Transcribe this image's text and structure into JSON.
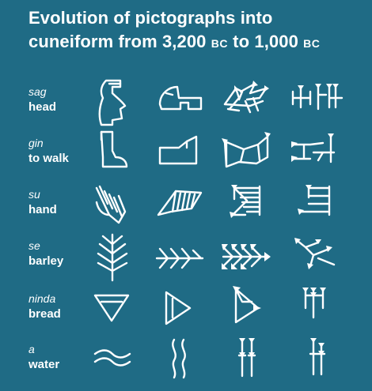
{
  "title": {
    "line1": "Evolution of pictographs into",
    "line2_a": "cuneiform from 3,200 ",
    "bc1": "BC",
    "line2_b": " to 1,000 ",
    "bc2": "BC"
  },
  "rows": [
    {
      "sumerian": "sag",
      "english": "head"
    },
    {
      "sumerian": "gin",
      "english": "to walk"
    },
    {
      "sumerian": "su",
      "english": "hand"
    },
    {
      "sumerian": "se",
      "english": "barley"
    },
    {
      "sumerian": "ninda",
      "english": "bread"
    },
    {
      "sumerian": "a",
      "english": "water"
    }
  ],
  "colors": {
    "background": "#1f6b85",
    "foreground": "#ffffff"
  }
}
